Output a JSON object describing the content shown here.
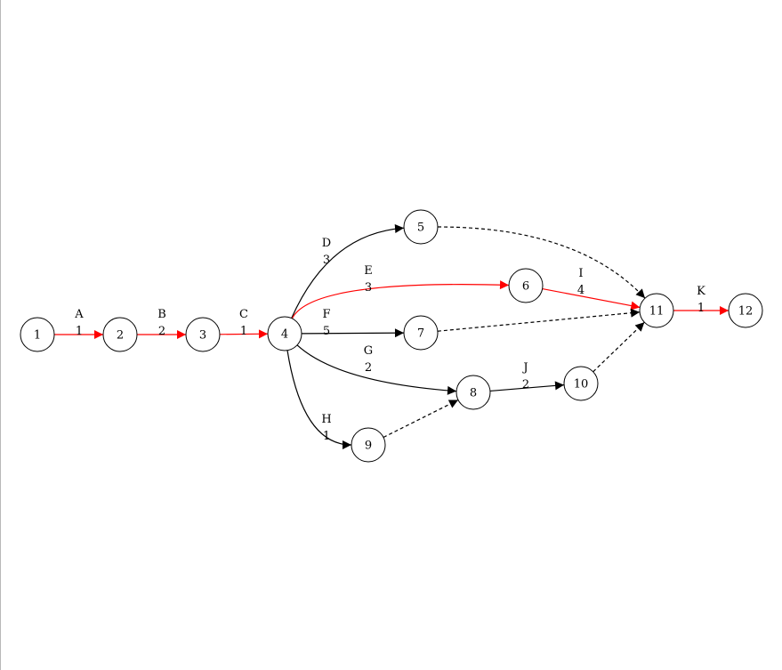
{
  "colors": {
    "critical": "#ff0000",
    "normal": "#000000",
    "node_fill": "#ffffff",
    "node_stroke": "#000000"
  },
  "nodes": [
    {
      "id": "1",
      "label": "1"
    },
    {
      "id": "2",
      "label": "2"
    },
    {
      "id": "3",
      "label": "3"
    },
    {
      "id": "4",
      "label": "4"
    },
    {
      "id": "5",
      "label": "5"
    },
    {
      "id": "6",
      "label": "6"
    },
    {
      "id": "7",
      "label": "7"
    },
    {
      "id": "8",
      "label": "8"
    },
    {
      "id": "9",
      "label": "9"
    },
    {
      "id": "10",
      "label": "10"
    },
    {
      "id": "11",
      "label": "11"
    },
    {
      "id": "12",
      "label": "12"
    }
  ],
  "activities": [
    {
      "from": "1",
      "to": "2",
      "name": "A",
      "duration": "1",
      "critical": true,
      "dummy": false
    },
    {
      "from": "2",
      "to": "3",
      "name": "B",
      "duration": "2",
      "critical": true,
      "dummy": false
    },
    {
      "from": "3",
      "to": "4",
      "name": "C",
      "duration": "1",
      "critical": true,
      "dummy": false
    },
    {
      "from": "4",
      "to": "5",
      "name": "D",
      "duration": "3",
      "critical": false,
      "dummy": false
    },
    {
      "from": "4",
      "to": "6",
      "name": "E",
      "duration": "3",
      "critical": true,
      "dummy": false
    },
    {
      "from": "4",
      "to": "7",
      "name": "F",
      "duration": "5",
      "critical": false,
      "dummy": false
    },
    {
      "from": "4",
      "to": "8",
      "name": "G",
      "duration": "2",
      "critical": false,
      "dummy": false
    },
    {
      "from": "4",
      "to": "9",
      "name": "H",
      "duration": "1",
      "critical": false,
      "dummy": false
    },
    {
      "from": "6",
      "to": "11",
      "name": "I",
      "duration": "4",
      "critical": true,
      "dummy": false
    },
    {
      "from": "8",
      "to": "10",
      "name": "J",
      "duration": "2",
      "critical": false,
      "dummy": false
    },
    {
      "from": "11",
      "to": "12",
      "name": "K",
      "duration": "1",
      "critical": true,
      "dummy": false
    },
    {
      "from": "5",
      "to": "11",
      "name": "",
      "duration": "",
      "critical": false,
      "dummy": true
    },
    {
      "from": "7",
      "to": "11",
      "name": "",
      "duration": "",
      "critical": false,
      "dummy": true
    },
    {
      "from": "9",
      "to": "8",
      "name": "",
      "duration": "",
      "critical": false,
      "dummy": true
    },
    {
      "from": "10",
      "to": "11",
      "name": "",
      "duration": "",
      "critical": false,
      "dummy": true
    }
  ]
}
